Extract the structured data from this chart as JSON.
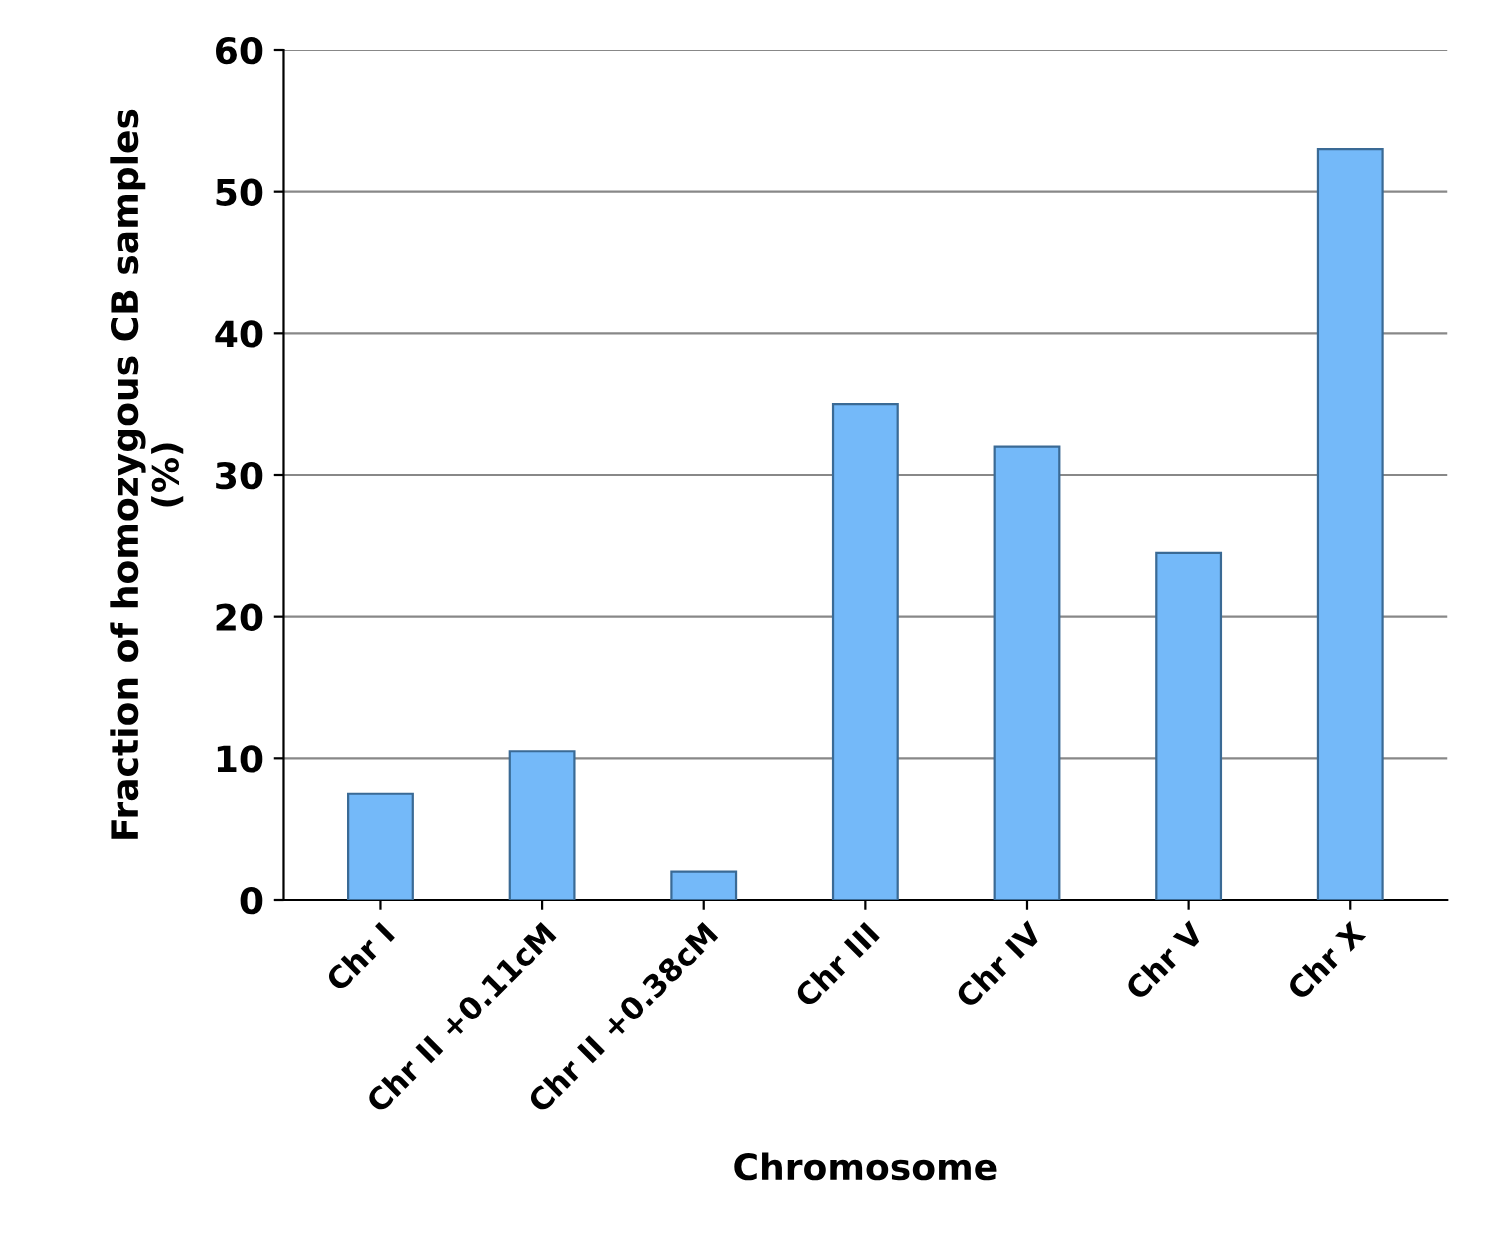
{
  "chart_data": {
    "type": "bar",
    "xlabel": "Chromosome",
    "ylabel": "Fraction of homozygous CB samples\n(%)",
    "categories": [
      "Chr I",
      "Chr II +0.11cM",
      "Chr II +0.38cM",
      "Chr III",
      "Chr IV",
      "Chr V",
      "Chr X"
    ],
    "values": [
      7.5,
      10.5,
      2,
      35,
      32,
      24.5,
      53
    ],
    "color": "#74b9f9",
    "ylim": [
      0,
      60
    ],
    "yticks": [
      0,
      10,
      20,
      30,
      40,
      50,
      60
    ],
    "grid": "y"
  }
}
